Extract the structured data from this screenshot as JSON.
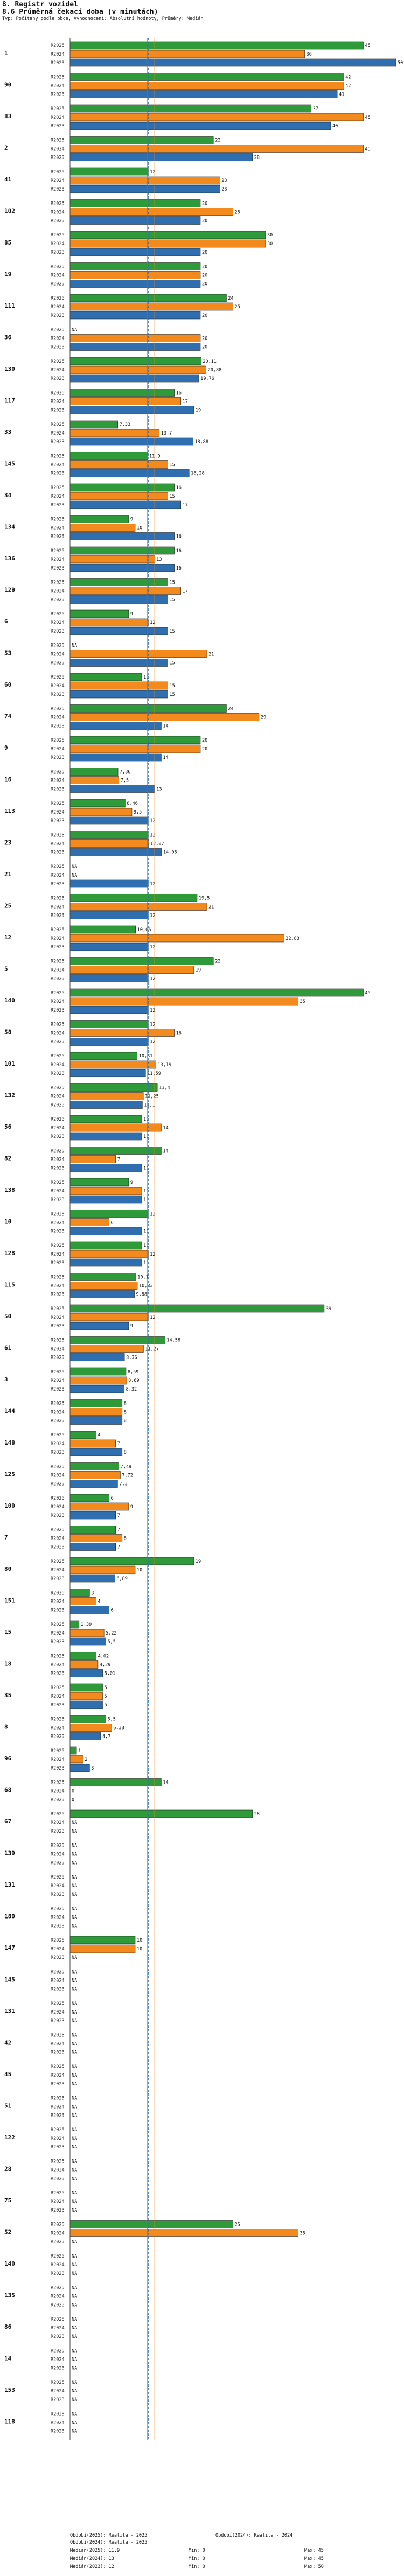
{
  "header": {
    "title": "8. Registr vozidel",
    "subtitle": "8.6 Průměrná čekací doba (v minutách)",
    "note": "Typ: Počítaný podle obce, Vyhodnocení: Absolutní hodnoty, Průměry: Medián"
  },
  "footer": {
    "left": [
      "Období(2025): Realita - 2025",
      "Období(2024): Realita - 2025",
      "Medián(2025): 11,9",
      "Medián(2024): 13",
      "Medián(2023): 12"
    ],
    "right": [
      "Období(2024): Realita - 2024",
      "Max: 45",
      "Max: 45",
      "Max: 50"
    ],
    "mins": [
      "Min: 0",
      "Min: 0",
      "Min: 0"
    ]
  },
  "chart_data": {
    "type": "bar",
    "orientation": "horizontal",
    "title": "8.6 Průměrná čekací doba (v minutách)",
    "series_names": [
      "R2025",
      "R2024",
      "R2023"
    ],
    "colors": {
      "R2025": "#2e9a3a",
      "R2024": "#f28a1e",
      "R2023": "#2f6fb0"
    },
    "axis_max": 50,
    "medians": [
      {
        "name": "Medián(2025)",
        "value": 11.9,
        "color": "#2e9a3a"
      },
      {
        "name": "Medián(2024)",
        "value": 13,
        "color": "#f28a1e"
      },
      {
        "name": "Medián(2023)",
        "value": 12,
        "color": "#2f6fb0"
      }
    ],
    "groups": [
      {
        "label": "1",
        "values": [
          45,
          36,
          50
        ],
        "texts": [
          "45",
          "36",
          "50"
        ]
      },
      {
        "label": "90",
        "values": [
          42,
          42,
          41
        ],
        "texts": [
          "42",
          "42",
          "41"
        ]
      },
      {
        "label": "83",
        "values": [
          37,
          45,
          40
        ],
        "texts": [
          "37",
          "45",
          "40"
        ]
      },
      {
        "label": "2",
        "values": [
          22,
          45,
          28
        ],
        "texts": [
          "22",
          "45",
          "28"
        ]
      },
      {
        "label": "41",
        "values": [
          12,
          23,
          23
        ],
        "texts": [
          "12",
          "23",
          "23"
        ]
      },
      {
        "label": "102",
        "values": [
          20,
          25,
          20
        ],
        "texts": [
          "20",
          "25",
          "20"
        ]
      },
      {
        "label": "85",
        "values": [
          30,
          30,
          20
        ],
        "texts": [
          "30",
          "30",
          "20"
        ]
      },
      {
        "label": "19",
        "values": [
          20,
          20,
          20
        ],
        "texts": [
          "20",
          "20",
          "20"
        ]
      },
      {
        "label": "111",
        "values": [
          24,
          25,
          20
        ],
        "texts": [
          "24",
          "25",
          "20"
        ]
      },
      {
        "label": "36",
        "values": [
          null,
          20,
          20
        ],
        "texts": [
          "NA",
          "20",
          "20"
        ]
      },
      {
        "label": "130",
        "values": [
          20.11,
          20.88,
          19.76
        ],
        "texts": [
          "20,11",
          "20,88",
          "19,76"
        ]
      },
      {
        "label": "117",
        "values": [
          16,
          17,
          19
        ],
        "texts": [
          "16",
          "17",
          "19"
        ]
      },
      {
        "label": "33",
        "values": [
          7.33,
          13.7,
          18.88
        ],
        "texts": [
          "7,33",
          "13,7",
          "18,88"
        ]
      },
      {
        "label": "145",
        "values": [
          11.9,
          15,
          18.28
        ],
        "texts": [
          "11,9",
          "15",
          "18,28"
        ]
      },
      {
        "label": "34",
        "values": [
          16,
          15,
          17
        ],
        "texts": [
          "16",
          "15",
          "17"
        ]
      },
      {
        "label": "134",
        "values": [
          9,
          10,
          16
        ],
        "texts": [
          "9",
          "10",
          "16"
        ]
      },
      {
        "label": "136",
        "values": [
          16,
          13,
          16
        ],
        "texts": [
          "16",
          "13",
          "16"
        ]
      },
      {
        "label": "129",
        "values": [
          15,
          17,
          15
        ],
        "texts": [
          "15",
          "17",
          "15"
        ]
      },
      {
        "label": "6",
        "values": [
          9,
          12,
          15
        ],
        "texts": [
          "9",
          "12",
          "15"
        ]
      },
      {
        "label": "53",
        "values": [
          null,
          21,
          15
        ],
        "texts": [
          "NA",
          "21",
          "15"
        ]
      },
      {
        "label": "60",
        "values": [
          11,
          15,
          15
        ],
        "texts": [
          "11",
          "15",
          "15"
        ]
      },
      {
        "label": "74",
        "values": [
          24,
          29,
          14
        ],
        "texts": [
          "24",
          "29",
          "14"
        ]
      },
      {
        "label": "9",
        "values": [
          20,
          20,
          14
        ],
        "texts": [
          "20",
          "20",
          "14"
        ]
      },
      {
        "label": "16",
        "values": [
          7.36,
          7.5,
          13
        ],
        "texts": [
          "7,36",
          "7,5",
          "13"
        ]
      },
      {
        "label": "113",
        "values": [
          8.46,
          9.5,
          12
        ],
        "texts": [
          "8,46",
          "9,5",
          "12"
        ]
      },
      {
        "label": "23",
        "values": [
          12,
          12.07,
          14.05
        ],
        "texts": [
          "12",
          "12,07",
          "14,05"
        ]
      },
      {
        "label": "21",
        "values": [
          null,
          null,
          12
        ],
        "texts": [
          "NA",
          "NA",
          "12"
        ]
      },
      {
        "label": "25",
        "values": [
          19.5,
          21,
          12
        ],
        "texts": [
          "19,5",
          "21",
          "12"
        ]
      },
      {
        "label": "12",
        "values": [
          10.06,
          32.83,
          12
        ],
        "texts": [
          "10,06",
          "32,83",
          "12"
        ]
      },
      {
        "label": "5",
        "values": [
          22,
          19,
          12
        ],
        "texts": [
          "22",
          "19",
          "12"
        ]
      },
      {
        "label": "140",
        "values": [
          45,
          35,
          12
        ],
        "texts": [
          "45",
          "35",
          "12"
        ]
      },
      {
        "label": "58",
        "values": [
          12,
          16,
          12
        ],
        "texts": [
          "12",
          "16",
          "12"
        ]
      },
      {
        "label": "101",
        "values": [
          10.31,
          13.19,
          11.59
        ],
        "texts": [
          "10,31",
          "13,19",
          "11,59"
        ]
      },
      {
        "label": "132",
        "values": [
          13.4,
          11.25,
          11.1
        ],
        "texts": [
          "13,4",
          "11,25",
          "11,1"
        ]
      },
      {
        "label": "56",
        "values": [
          11,
          14,
          11
        ],
        "texts": [
          "11",
          "14",
          "11"
        ]
      },
      {
        "label": "82",
        "values": [
          14,
          7,
          11
        ],
        "texts": [
          "14",
          "7",
          "11"
        ]
      },
      {
        "label": "138",
        "values": [
          9,
          11,
          11
        ],
        "texts": [
          "9",
          "11",
          "11"
        ]
      },
      {
        "label": "10",
        "values": [
          12,
          6,
          11
        ],
        "texts": [
          "12",
          "6",
          "11"
        ]
      },
      {
        "label": "128",
        "values": [
          11,
          12,
          11
        ],
        "texts": [
          "11",
          "12",
          "11"
        ]
      },
      {
        "label": "115",
        "values": [
          10.1,
          10.33,
          9.88
        ],
        "texts": [
          "10,1",
          "10,33",
          "9,88"
        ]
      },
      {
        "label": "50",
        "values": [
          39,
          12,
          9
        ],
        "texts": [
          "39",
          "12",
          "9"
        ]
      },
      {
        "label": "61",
        "values": [
          14.58,
          11.27,
          8.36
        ],
        "texts": [
          "14,58",
          "11,27",
          "8,36"
        ]
      },
      {
        "label": "3",
        "values": [
          8.59,
          8.69,
          8.32
        ],
        "texts": [
          "8,59",
          "8,69",
          "8,32"
        ]
      },
      {
        "label": "144",
        "values": [
          8,
          8,
          8
        ],
        "texts": [
          "8",
          "8",
          "8"
        ]
      },
      {
        "label": "148",
        "values": [
          4,
          7,
          8
        ],
        "texts": [
          "4",
          "7",
          "8"
        ]
      },
      {
        "label": "125",
        "values": [
          7.49,
          7.72,
          7.3
        ],
        "texts": [
          "7,49",
          "7,72",
          "7,3"
        ]
      },
      {
        "label": "100",
        "values": [
          6,
          9,
          7
        ],
        "texts": [
          "6",
          "9",
          "7"
        ]
      },
      {
        "label": "7",
        "values": [
          7,
          8,
          7
        ],
        "texts": [
          "7",
          "8",
          "7"
        ]
      },
      {
        "label": "80",
        "values": [
          19,
          10,
          6.89
        ],
        "texts": [
          "19",
          "10",
          "6,89"
        ]
      },
      {
        "label": "151",
        "values": [
          3,
          4,
          6
        ],
        "texts": [
          "3",
          "4",
          "6"
        ]
      },
      {
        "label": "15",
        "values": [
          1.39,
          5.22,
          5.5
        ],
        "texts": [
          "1,39",
          "5,22",
          "5,5"
        ]
      },
      {
        "label": "18",
        "values": [
          4.02,
          4.29,
          5.01
        ],
        "texts": [
          "4,02",
          "4,29",
          "5,01"
        ]
      },
      {
        "label": "35",
        "values": [
          5,
          5,
          5
        ],
        "texts": [
          "5",
          "5",
          "5"
        ]
      },
      {
        "label": "8",
        "values": [
          5.5,
          6.38,
          4.7
        ],
        "texts": [
          "5,5",
          "6,38",
          "4,7"
        ]
      },
      {
        "label": "96",
        "values": [
          1,
          2,
          3
        ],
        "texts": [
          "1",
          "2",
          "3"
        ]
      },
      {
        "label": "68",
        "values": [
          14,
          0,
          0
        ],
        "texts": [
          "14",
          "0",
          "0"
        ]
      },
      {
        "label": "67",
        "values": [
          28,
          null,
          null
        ],
        "texts": [
          "28",
          "NA",
          "NA"
        ]
      },
      {
        "label": "139",
        "values": [
          null,
          null,
          null
        ],
        "texts": [
          "NA",
          "NA",
          "NA"
        ]
      },
      {
        "label": "131",
        "values": [
          null,
          null,
          null
        ],
        "texts": [
          "NA",
          "NA",
          "NA"
        ]
      },
      {
        "label": "180",
        "values": [
          null,
          null,
          null
        ],
        "texts": [
          "NA",
          "NA",
          "NA"
        ]
      },
      {
        "label": "147",
        "values": [
          10,
          10,
          null
        ],
        "texts": [
          "10",
          "10",
          "NA"
        ]
      },
      {
        "label": "145",
        "values": [
          null,
          null,
          null
        ],
        "texts": [
          "NA",
          "NA",
          "NA"
        ]
      },
      {
        "label": "131",
        "values": [
          null,
          null,
          null
        ],
        "texts": [
          "NA",
          "NA",
          "NA"
        ]
      },
      {
        "label": "42",
        "values": [
          null,
          null,
          null
        ],
        "texts": [
          "NA",
          "NA",
          "NA"
        ]
      },
      {
        "label": "45",
        "values": [
          null,
          null,
          null
        ],
        "texts": [
          "NA",
          "NA",
          "NA"
        ]
      },
      {
        "label": "51",
        "values": [
          null,
          null,
          null
        ],
        "texts": [
          "NA",
          "NA",
          "NA"
        ]
      },
      {
        "label": "122",
        "values": [
          null,
          null,
          null
        ],
        "texts": [
          "NA",
          "NA",
          "NA"
        ]
      },
      {
        "label": "28",
        "values": [
          null,
          null,
          null
        ],
        "texts": [
          "NA",
          "NA",
          "NA"
        ]
      },
      {
        "label": "75",
        "values": [
          null,
          null,
          null
        ],
        "texts": [
          "NA",
          "NA",
          "NA"
        ]
      },
      {
        "label": "52",
        "values": [
          25,
          35,
          null
        ],
        "texts": [
          "25",
          "35",
          "NA"
        ]
      },
      {
        "label": "140",
        "values": [
          null,
          null,
          null
        ],
        "texts": [
          "NA",
          "NA",
          "NA"
        ]
      },
      {
        "label": "135",
        "values": [
          null,
          null,
          null
        ],
        "texts": [
          "NA",
          "NA",
          "NA"
        ]
      },
      {
        "label": "86",
        "values": [
          null,
          null,
          null
        ],
        "texts": [
          "NA",
          "NA",
          "NA"
        ]
      },
      {
        "label": "14",
        "values": [
          null,
          null,
          null
        ],
        "texts": [
          "NA",
          "NA",
          "NA"
        ]
      },
      {
        "label": "153",
        "values": [
          null,
          null,
          null
        ],
        "texts": [
          "NA",
          "NA",
          "NA"
        ]
      },
      {
        "label": "118",
        "values": [
          null,
          null,
          null
        ],
        "texts": [
          "NA",
          "NA",
          "NA"
        ]
      }
    ]
  }
}
